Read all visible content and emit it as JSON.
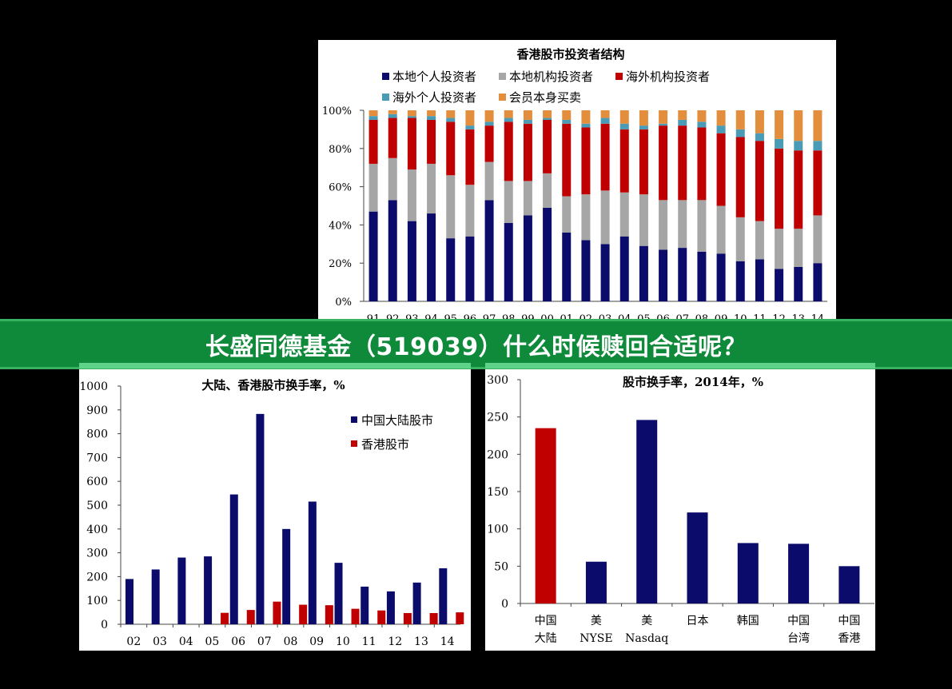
{
  "banner": {
    "title": "长盛同德基金（519039）什么时候赎回合适呢？"
  },
  "chart_data": [
    {
      "id": "structure",
      "type": "bar",
      "stacked": true,
      "title": "香港股市投资者结构",
      "categories": [
        "91",
        "92",
        "93",
        "94",
        "95",
        "96",
        "97",
        "98",
        "99",
        "00",
        "01",
        "02",
        "03",
        "04",
        "05",
        "06",
        "07",
        "08",
        "09",
        "10",
        "11",
        "12",
        "13",
        "14"
      ],
      "yticks": [
        "0%",
        "20%",
        "40%",
        "60%",
        "80%",
        "100%"
      ],
      "ylim": [
        0,
        100
      ],
      "legend": "top",
      "series": [
        {
          "name": "本地个人投资者",
          "color": "#0b0b6b",
          "values": [
            47,
            53,
            42,
            46,
            33,
            34,
            53,
            41,
            45,
            49,
            36,
            32,
            30,
            34,
            29,
            27,
            28,
            26,
            25,
            21,
            22,
            17,
            18,
            20
          ]
        },
        {
          "name": "本地机构投资者",
          "color": "#a6a6a6",
          "values": [
            25,
            22,
            27,
            26,
            33,
            27,
            20,
            22,
            18,
            18,
            19,
            24,
            28,
            23,
            27,
            26,
            25,
            27,
            25,
            23,
            20,
            21,
            20,
            25
          ]
        },
        {
          "name": "海外机构投资者",
          "color": "#c00000",
          "values": [
            23,
            21,
            27,
            23,
            28,
            29,
            19,
            31,
            30,
            28,
            38,
            35,
            35,
            33,
            34,
            39,
            39,
            38,
            38,
            42,
            42,
            42,
            41,
            34
          ]
        },
        {
          "name": "海外个人投资者",
          "color": "#4a9bb5",
          "values": [
            2,
            2,
            1,
            2,
            2,
            2,
            2,
            2,
            2,
            1,
            2,
            2,
            3,
            3,
            2,
            1,
            3,
            3,
            4,
            4,
            4,
            5,
            5,
            5
          ]
        },
        {
          "name": "会员本身买卖",
          "color": "#e38e3c",
          "values": [
            3,
            2,
            3,
            3,
            4,
            8,
            6,
            4,
            5,
            4,
            5,
            7,
            4,
            7,
            8,
            7,
            5,
            6,
            8,
            10,
            12,
            15,
            16,
            16
          ]
        }
      ]
    },
    {
      "id": "turnover",
      "type": "bar",
      "title": "大陆、香港股市换手率，%",
      "categories": [
        "02",
        "03",
        "04",
        "05",
        "06",
        "07",
        "08",
        "09",
        "10",
        "11",
        "12",
        "13",
        "14"
      ],
      "yticks": [
        "0",
        "100",
        "200",
        "300",
        "400",
        "500",
        "600",
        "700",
        "800",
        "900",
        "1000"
      ],
      "ylim": [
        0,
        1000
      ],
      "legend": "top-right",
      "series": [
        {
          "name": "中国大陆股市",
          "color": "#0b0b6b",
          "values": [
            190,
            230,
            280,
            285,
            545,
            883,
            400,
            515,
            258,
            158,
            138,
            175,
            235
          ]
        },
        {
          "name": "香港股市",
          "color": "#c00000",
          "values": [
            null,
            null,
            null,
            48,
            60,
            95,
            82,
            80,
            65,
            58,
            47,
            47,
            50
          ]
        }
      ]
    },
    {
      "id": "turnover2014",
      "type": "bar",
      "title": "股市换手率，2014年，%",
      "categories": [
        [
          "中国",
          "大陆"
        ],
        [
          "美",
          "NYSE"
        ],
        [
          "美",
          "Nasdaq"
        ],
        [
          "日本",
          ""
        ],
        [
          "韩国",
          ""
        ],
        [
          "中国",
          "台湾"
        ],
        [
          "中国",
          "香港"
        ]
      ],
      "yticks": [
        "0",
        "50",
        "100",
        "150",
        "200",
        "250",
        "300"
      ],
      "ylim": [
        0,
        300
      ],
      "values": [
        235,
        56,
        246,
        122,
        81,
        80,
        50
      ],
      "colors": [
        "#c00000",
        "#0b0b6b",
        "#0b0b6b",
        "#0b0b6b",
        "#0b0b6b",
        "#0b0b6b",
        "#0b0b6b"
      ]
    }
  ]
}
